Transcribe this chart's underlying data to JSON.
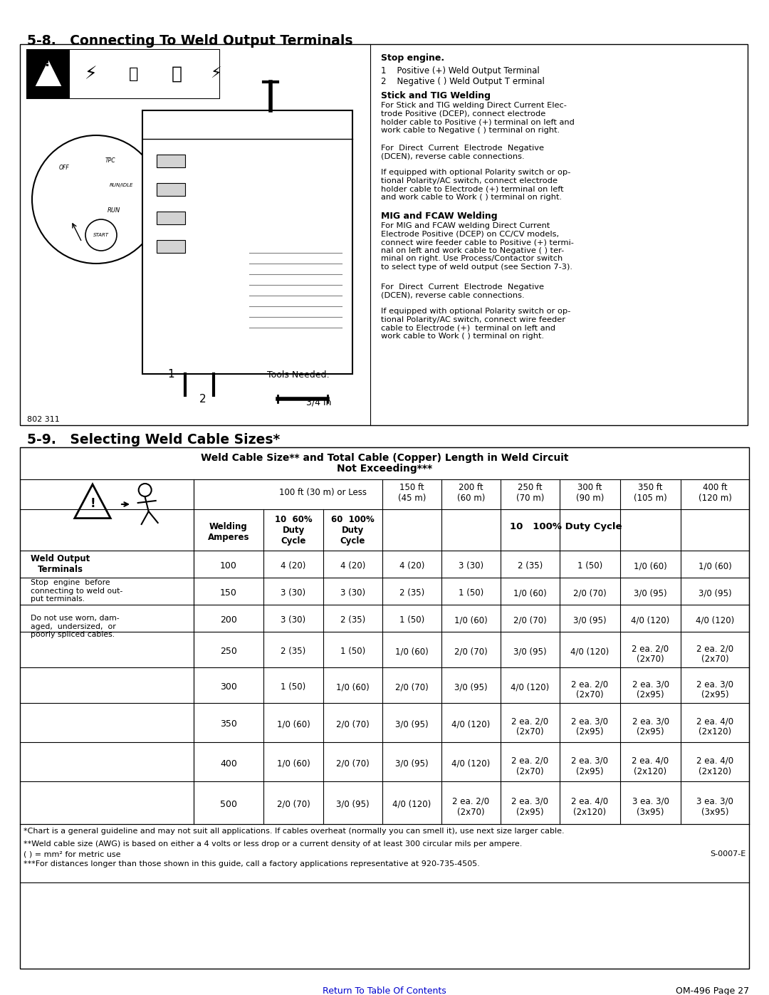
{
  "title1": "5-8.   Connecting To Weld Output Terminals",
  "title2": "5-9.   Selecting Weld Cable Sizes*",
  "section1_box_label": "802 311",
  "stop_engine_bold": "Stop engine.",
  "items_1_2": [
    "1    Positive (+) Weld Output Terminal",
    "2    Negative ( ) Weld Output T erminal"
  ],
  "stick_tig_bold": "Stick and TIG Welding",
  "stick_tig_text": [
    "For Stick and TIG welding Direct Current Elec-\ntrode Positive (DCEP), connect electrode\nholder cable to Positive (+) terminal on left and\nwork cable to Negative ( ) terminal on right.",
    "For  Direct  Current  Electrode  Negative\n(DCEN), reverse cable connections.",
    "If equipped with optional Polarity switch or op-\ntional Polarity/AC switch, connect electrode\nholder cable to Electrode (+) terminal on left\nand work cable to Work ( ) terminal on right."
  ],
  "mig_fcaw_bold": "MIG and FCAW Welding",
  "mig_fcaw_text": [
    "For MIG and FCAW welding Direct Current\nElectrode Positive (DCEP) on CC/CV models,\nconnect wire feeder cable to Positive (+) termi-\nnal on left and work cable to Negative ( ) ter-\nminal on right. Use Process/Contactor switch\nto select type of weld output (see Section 7-3).",
    "For  Direct  Current  Electrode  Negative\n(DCEN), reverse cable connections.",
    "If equipped with optional Polarity switch or op-\ntional Polarity/AC switch, connect wire feeder\ncable to Electrode (+)  terminal on left and\nwork cable to Work ( ) terminal on right."
  ],
  "tools_needed": "Tools Needed:",
  "wrench_size": "3/4 in",
  "table_title_line1": "Weld Cable Size** and Total Cable (Copper) Length in Weld Circuit",
  "table_title_line2": "Not Exceeding***",
  "col_headers": [
    "100 ft (30 m) or Less",
    "150 ft\n(45 m)",
    "200 ft\n(60 m)",
    "250 ft\n(70 m)",
    "300 ft\n(90 m)",
    "350 ft\n(105 m)",
    "400 ft\n(120 m)"
  ],
  "sub_col_headers": [
    "10  60%\nDuty\nCycle",
    "60  100%\nDuty\nCycle"
  ],
  "duty_cycle_header": "10   100% Duty Cycle",
  "welding_col": "Welding\nAmperes",
  "weld_output_text": "Weld Output\nTerminals",
  "warning_text1": "Stop  engine  before\nconnecting to weld out-\nput terminals.",
  "warning_text2": "Do not use worn, dam-\naged,  undersized,  or\npoorly spliced cables.",
  "amperes": [
    100,
    150,
    200,
    250,
    300,
    350,
    400,
    500
  ],
  "table_data": [
    [
      "4 (20)",
      "4 (20)",
      "4 (20)",
      "3 (30)",
      "2 (35)",
      "1 (50)",
      "1/0 (60)",
      "1/0 (60)"
    ],
    [
      "3 (30)",
      "3 (30)",
      "2 (35)",
      "1 (50)",
      "1/0 (60)",
      "2/0 (70)",
      "3/0 (95)",
      "3/0 (95)"
    ],
    [
      "3 (30)",
      "2 (35)",
      "1 (50)",
      "1/0 (60)",
      "2/0 (70)",
      "3/0 (95)",
      "4/0 (120)",
      "4/0 (120)"
    ],
    [
      "2 (35)",
      "1 (50)",
      "1/0 (60)",
      "2/0 (70)",
      "3/0 (95)",
      "4/0 (120)",
      "2 ea. 2/0\n(2x70)",
      "2 ea. 2/0\n(2x70)"
    ],
    [
      "1 (50)",
      "1/0 (60)",
      "2/0 (70)",
      "3/0 (95)",
      "4/0 (120)",
      "2 ea. 2/0\n(2x70)",
      "2 ea. 3/0\n(2x95)",
      "2 ea. 3/0\n(2x95)"
    ],
    [
      "1/0 (60)",
      "2/0 (70)",
      "3/0 (95)",
      "4/0 (120)",
      "2 ea. 2/0\n(2x70)",
      "2 ea. 3/0\n(2x95)",
      "2 ea. 3/0\n(2x95)",
      "2 ea. 4/0\n(2x120)"
    ],
    [
      "1/0 (60)",
      "2/0 (70)",
      "3/0 (95)",
      "4/0 (120)",
      "2 ea. 2/0\n(2x70)",
      "2 ea. 3/0\n(2x95)",
      "2 ea. 4/0\n(2x120)",
      "2 ea. 4/0\n(2x120)"
    ],
    [
      "2/0 (70)",
      "3/0 (95)",
      "4/0 (120)",
      "2 ea. 2/0\n(2x70)",
      "2 ea. 3/0\n(2x95)",
      "2 ea. 4/0\n(2x120)",
      "3 ea. 3/0\n(3x95)",
      "3 ea. 3/0\n(3x95)"
    ]
  ],
  "footnote1": "*Chart is a general guideline and may not suit all applications. If cables overheat (normally you can smell it), use next size larger cable.",
  "footnote2": "**Weld cable size (AWG) is based on either a 4 volts or less drop or a current density of at least 300 circular mils per ampere.",
  "footnote3": "( ) = mm² for metric use",
  "footnote3_right": "S-0007-E",
  "footnote4": "***For distances longer than those shown in this guide, call a factory applications representative at 920-735-4505.",
  "footer_link": "Return To Table Of Contents",
  "footer_right": "OM-496 Page 27",
  "bg_color": "#ffffff",
  "border_color": "#000000",
  "link_color": "#0000cc"
}
